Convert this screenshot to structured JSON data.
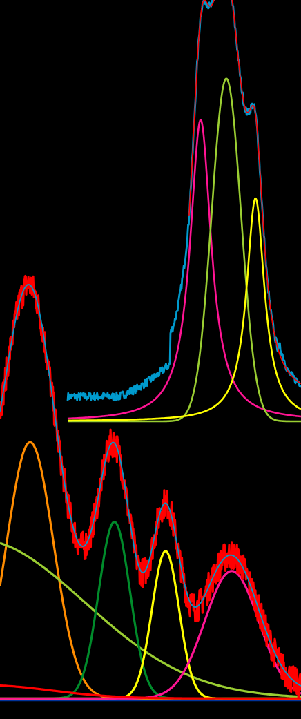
{
  "chart_data": [
    {
      "type": "line",
      "title": "",
      "xlabel": "",
      "ylabel": "",
      "grid": false,
      "legend": "none",
      "xlim": [
        0,
        1
      ],
      "ylim": [
        0,
        1
      ],
      "measured": {
        "name": "",
        "color": "#009ACD",
        "baseline_x": [
          0.22,
          0.3,
          0.38,
          0.46,
          0.52
        ],
        "baseline_y": [
          0.06,
          0.08,
          0.11,
          0.15,
          0.22
        ],
        "tail_x": [
          0.91,
          0.95,
          1.0
        ],
        "tail_y": [
          0.18,
          0.11,
          0.06
        ]
      },
      "fit": {
        "name": "",
        "color": "#FF0000",
        "x_start": 0.52
      },
      "series": [
        {
          "name": "",
          "color": "#FF1493",
          "shape": "lorentzian",
          "center": 0.57,
          "height": 0.73,
          "width": 0.055
        },
        {
          "name": "",
          "color": "#9ACD32",
          "shape": "gaussian",
          "center": 0.68,
          "height": 0.83,
          "width": 0.063
        },
        {
          "name": "",
          "color": "#FFFF00",
          "shape": "lorentzian",
          "center": 0.805,
          "height": 0.54,
          "width": 0.047
        }
      ]
    },
    {
      "type": "line",
      "title": "",
      "xlabel": "",
      "ylabel": "",
      "grid": false,
      "legend": "none",
      "xlim": [
        0,
        1
      ],
      "ylim": [
        0,
        1
      ],
      "measured": {
        "name": "",
        "color": "#FF0000",
        "noise": 0.035
      },
      "fit": {
        "name": "",
        "color": "#009ACD"
      },
      "series": [
        {
          "name": "",
          "color": "#FF8C00",
          "shape": "gaussian",
          "center": 0.1,
          "height": 0.965,
          "width": 0.078
        },
        {
          "name": "",
          "color": "#9ACD32",
          "shape": "gaussian",
          "center": -0.08,
          "height": 0.6,
          "width": 0.36
        },
        {
          "name": "",
          "color": "#008B2B",
          "shape": "gaussian",
          "center": 0.38,
          "height": 0.665,
          "width": 0.052
        },
        {
          "name": "",
          "color": "#FFFF00",
          "shape": "gaussian",
          "center": 0.55,
          "height": 0.555,
          "width": 0.045
        },
        {
          "name": "",
          "color": "#FF1493",
          "shape": "gaussian",
          "center": 0.77,
          "height": 0.48,
          "width": 0.09
        },
        {
          "name": "",
          "color": "#FF0000",
          "shape": "gaussian",
          "center": -0.05,
          "height": 0.05,
          "width": 0.22
        }
      ]
    }
  ]
}
